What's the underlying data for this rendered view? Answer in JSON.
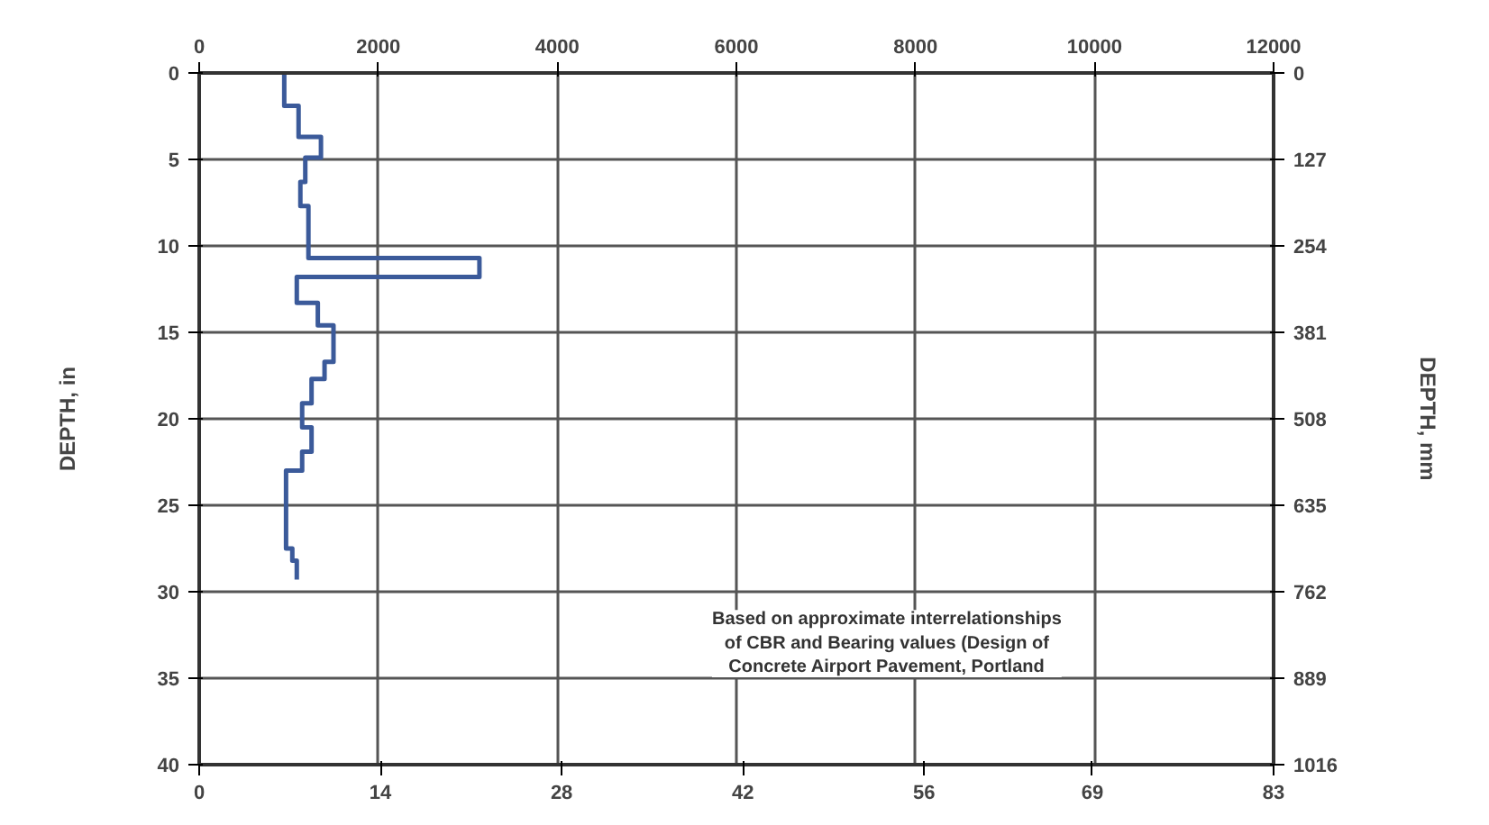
{
  "chart_data": {
    "type": "line",
    "ylabel": "DEPTH, in",
    "y2label": "DEPTH, mm",
    "xlim": [
      0,
      83
    ],
    "xticks": [
      0,
      14,
      28,
      42,
      56,
      69,
      83
    ],
    "x2lim": [
      0,
      12000
    ],
    "x2ticks": [
      0,
      2000,
      4000,
      6000,
      8000,
      10000,
      12000
    ],
    "ylim": [
      40,
      0
    ],
    "yticks": [
      0,
      5,
      10,
      15,
      20,
      25,
      30,
      35,
      40
    ],
    "y2lim": [
      1016,
      0
    ],
    "y2ticks": [
      0,
      127,
      254,
      381,
      508,
      635,
      762,
      889,
      1016
    ],
    "grid": true,
    "line_style": "solid",
    "series": [
      {
        "color": "#3b5a9a",
        "axis": "x2",
        "x": [
          950,
          950,
          1110,
          1110,
          1360,
          1360,
          1185,
          1185,
          1130,
          1130,
          1220,
          1220,
          3130,
          3130,
          1090,
          1090,
          1325,
          1325,
          1500,
          1500,
          1400,
          1400,
          1255,
          1255,
          1150,
          1150,
          1255,
          1255,
          1150,
          1150,
          970,
          970,
          1040,
          1040,
          1090,
          1090
        ],
        "values": [
          0,
          1.9,
          1.9,
          3.7,
          3.7,
          4.9,
          4.9,
          6.3,
          6.3,
          7.7,
          7.7,
          10.7,
          10.7,
          11.8,
          11.8,
          13.3,
          13.3,
          14.6,
          14.6,
          16.7,
          16.7,
          17.7,
          17.7,
          19.1,
          19.1,
          20.5,
          20.5,
          21.9,
          21.9,
          23,
          23,
          27.5,
          27.5,
          28.2,
          28.2,
          29.3
        ]
      }
    ],
    "annotations": [
      "Based on approximate interrelationships\nof CBR and Bearing values (Design of\nConcrete Airport Pavement, Portland"
    ]
  }
}
